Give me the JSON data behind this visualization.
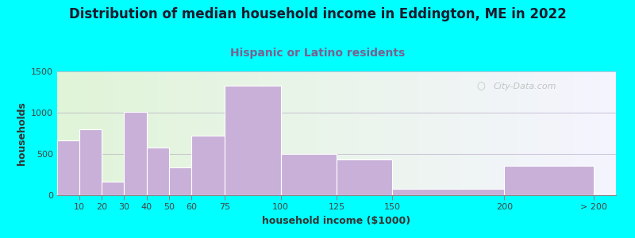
{
  "title": "Distribution of median household income in Eddington, ME in 2022",
  "subtitle": "Hispanic or Latino residents",
  "xlabel": "household income ($1000)",
  "ylabel": "households",
  "background_color": "#00FFFF",
  "bar_color": "#c8b0d8",
  "categories": [
    "10",
    "20",
    "30",
    "40",
    "50",
    "60",
    "75",
    "100",
    "125",
    "150",
    "200",
    "> 200"
  ],
  "values": [
    660,
    800,
    160,
    1010,
    580,
    340,
    720,
    1330,
    500,
    430,
    75,
    360
  ],
  "edges": [
    0,
    10,
    20,
    30,
    40,
    50,
    60,
    75,
    100,
    125,
    150,
    200,
    240
  ],
  "tick_positions": [
    10,
    20,
    30,
    40,
    50,
    60,
    75,
    100,
    125,
    150,
    200,
    240
  ],
  "tick_labels": [
    "10",
    "20",
    "30",
    "40",
    "50",
    "60",
    "75",
    "100",
    "125",
    "150",
    "200",
    "> 200"
  ],
  "xlim": [
    0,
    250
  ],
  "ylim": [
    0,
    1500
  ],
  "yticks": [
    0,
    500,
    1000,
    1500
  ],
  "watermark": "City-Data.com",
  "title_fontsize": 12,
  "subtitle_fontsize": 10,
  "subtitle_color": "#7a6090",
  "axis_label_fontsize": 9,
  "tick_fontsize": 8,
  "title_color": "#1a1a2e"
}
